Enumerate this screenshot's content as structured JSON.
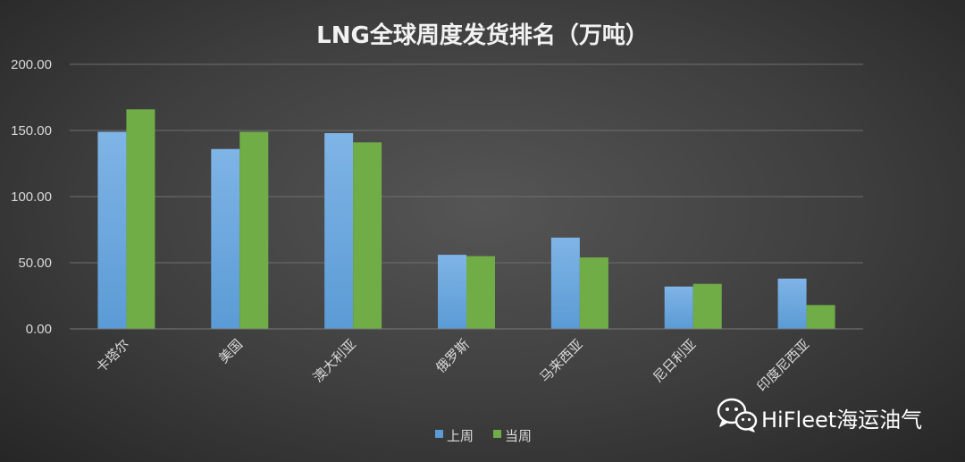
{
  "chart_data": {
    "type": "bar",
    "title": "LNG全球周度发货排名（万吨）",
    "categories": [
      "卡塔尔",
      "美国",
      "澳大利亚",
      "俄罗斯",
      "马来西亚",
      "尼日利亚",
      "印度尼西亚"
    ],
    "series": [
      {
        "name": "上周",
        "color": "#5b9bd5",
        "values": [
          149,
          136,
          148,
          56,
          69,
          32,
          38
        ]
      },
      {
        "name": "当周",
        "color": "#70ad47",
        "values": [
          166,
          149,
          141,
          55,
          54,
          34,
          18
        ]
      }
    ],
    "yticks": [
      "0.00",
      "50.00",
      "100.00",
      "150.00",
      "200.00"
    ],
    "ylim": [
      0,
      200
    ],
    "grid": true,
    "legend_position": "bottom"
  },
  "watermark": {
    "icon": "wechat-icon",
    "text": "HiFleet海运油气"
  }
}
